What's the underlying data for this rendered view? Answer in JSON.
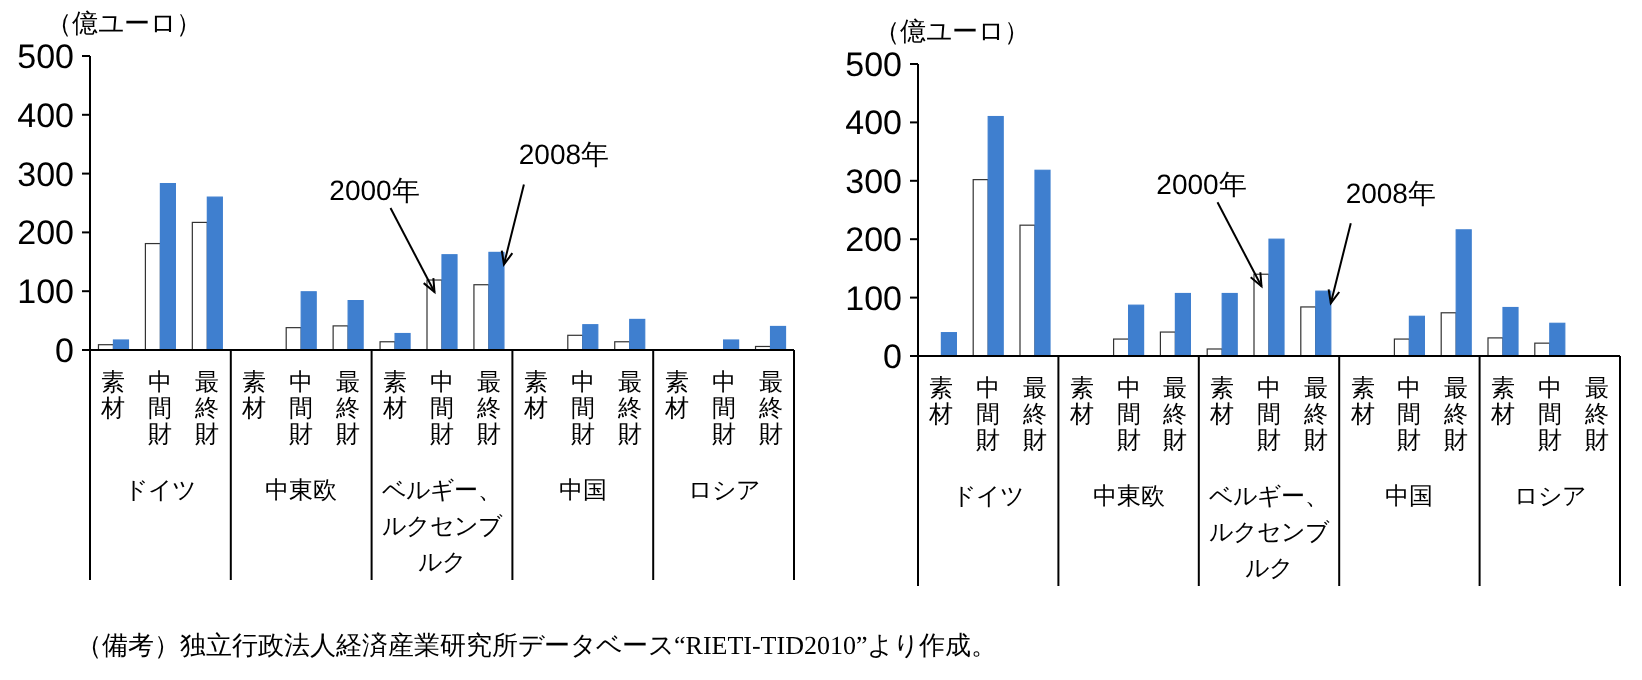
{
  "chart_data": [
    {
      "type": "bar",
      "ylabel": "（億ユーロ）",
      "ylim": [
        0,
        500
      ],
      "yticks": [
        0,
        100,
        200,
        300,
        400,
        500
      ],
      "categories": [
        "素材",
        "中間財",
        "最終財",
        "素材",
        "中間財",
        "最終財",
        "素材",
        "中間財",
        "最終財",
        "素材",
        "中間財",
        "最終財",
        "素材",
        "中間財",
        "最終財"
      ],
      "series": [
        {
          "name": "2000年",
          "color": "#ffffff",
          "values": [
            9,
            181,
            217,
            0,
            38,
            41,
            14,
            119,
            111,
            0,
            25,
            14,
            0,
            0,
            6
          ]
        },
        {
          "name": "2008年",
          "color": "#3f7fcf",
          "values": [
            17,
            283,
            260,
            0,
            99,
            84,
            28,
            162,
            166,
            0,
            43,
            52,
            0,
            17,
            40
          ]
        }
      ],
      "annotations": [
        "ドイツ",
        "中東欧",
        "ベルギー、ルクセンブルク",
        "中国",
        "ロシア",
        "（備考）独立行政法人経済産業研究所データベース“RIETI-TID2010”より作成。"
      ]
    },
    {
      "type": "bar",
      "ylabel": "（億ユーロ）",
      "ylim": [
        0,
        500
      ],
      "yticks": [
        0,
        100,
        200,
        300,
        400,
        500
      ],
      "categories": [
        "素材",
        "中間財",
        "最終財",
        "素材",
        "中間財",
        "最終財",
        "素材",
        "中間財",
        "最終財",
        "素材",
        "中間財",
        "最終財",
        "素材",
        "中間財",
        "最終財"
      ],
      "series": [
        {
          "name": "2000年",
          "color": "#ffffff",
          "values": [
            0,
            302,
            224,
            0,
            29,
            41,
            12,
            140,
            84,
            0,
            29,
            74,
            31,
            22,
            0
          ]
        },
        {
          "name": "2008年",
          "color": "#3f7fcf",
          "values": [
            40,
            410,
            318,
            0,
            87,
            107,
            107,
            200,
            111,
            0,
            68,
            216,
            83,
            56,
            0
          ]
        }
      ],
      "annotations": [
        "ドイツ",
        "中東欧",
        "ベルギー、ルクセンブルク",
        "中国",
        "ロシア"
      ]
    }
  ]
}
